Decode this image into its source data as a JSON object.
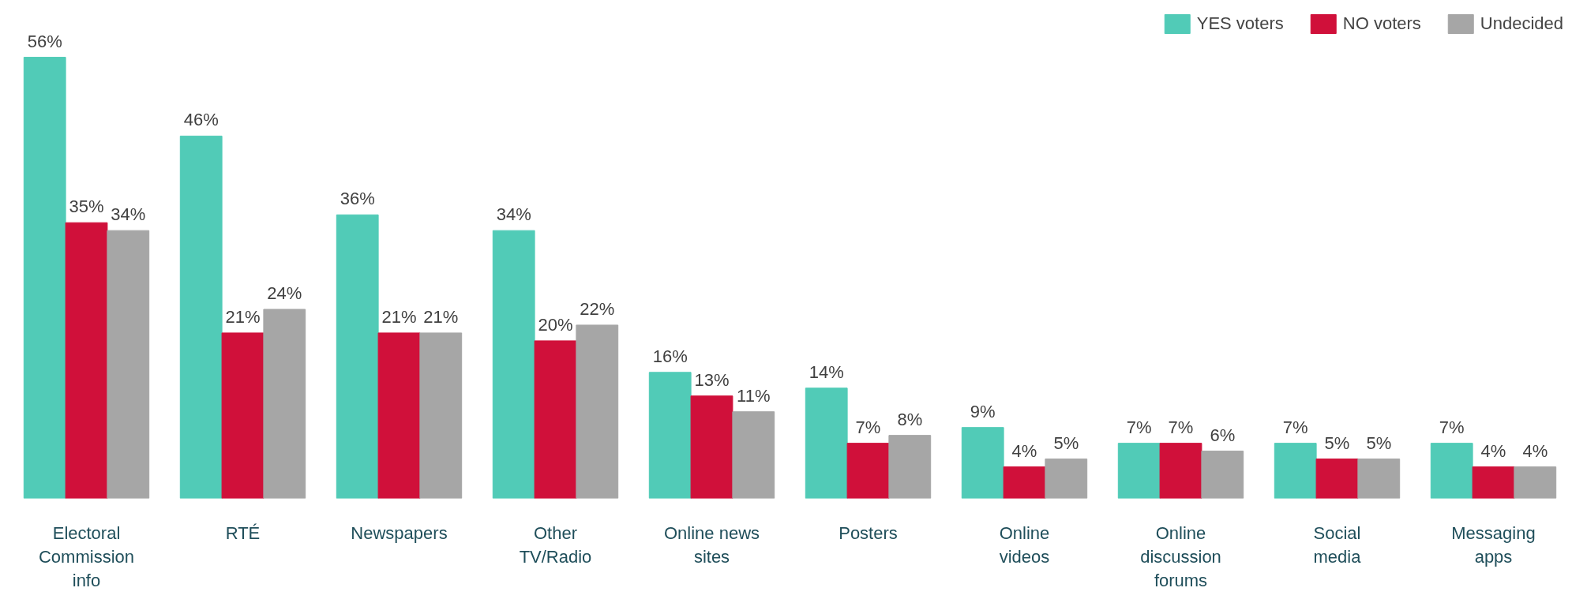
{
  "chart_data": {
    "type": "bar",
    "categories": [
      "Electoral Commission info",
      "RTÉ",
      "Newspapers",
      "Other TV/Radio",
      "Online news sites",
      "Posters",
      "Online videos",
      "Online discussion forums",
      "Social media",
      "Messaging apps"
    ],
    "series": [
      {
        "name": "YES voters",
        "color": "#51cbb7",
        "values": [
          56,
          46,
          36,
          34,
          16,
          14,
          9,
          7,
          7,
          7
        ],
        "value_labels": [
          "56%",
          "46%",
          "36%",
          "34%",
          "16%",
          "14%",
          "9%",
          "7%",
          "7%",
          "7%"
        ]
      },
      {
        "name": "NO voters",
        "color": "#d0103a",
        "values": [
          35,
          21,
          21,
          20,
          13,
          7,
          4,
          7,
          5,
          4
        ],
        "value_labels": [
          "35%",
          "21%",
          "21%",
          "20%",
          "13%",
          "7%",
          "4%",
          "7%",
          "5%",
          "4%"
        ]
      },
      {
        "name": "Undecided",
        "color": "#a6a6a6",
        "values": [
          34,
          24,
          21,
          22,
          11,
          8,
          5,
          6,
          5,
          4
        ],
        "value_labels": [
          "34%",
          "24%",
          "21%",
          "22%",
          "11%",
          "8%",
          "5%",
          "6%",
          "5%",
          "4%"
        ]
      }
    ],
    "legend": "top right",
    "grid": false
  }
}
